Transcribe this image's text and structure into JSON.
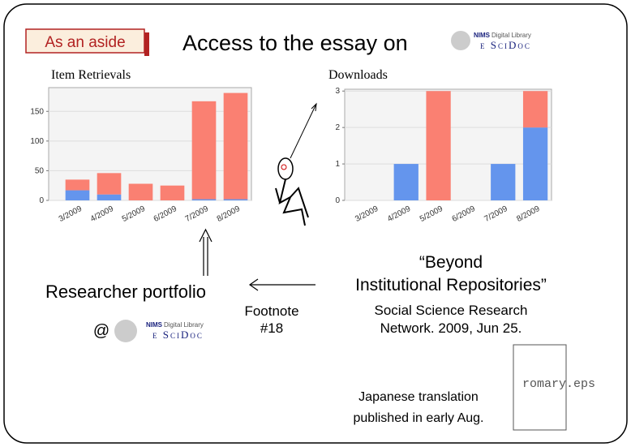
{
  "slide": {
    "aside": "As an aside",
    "title": "Access to the essay on",
    "logo": {
      "org": "NIMS",
      "name": "Digital Library",
      "brand": "e SciDoc"
    },
    "quote": [
      "“Beyond",
      "Institutional Repositories”"
    ],
    "citation": [
      "Social Science Research",
      "Network. 2009, Jun 25."
    ],
    "portfolio": "Researcher portfolio",
    "at": "@",
    "footnote": [
      "Footnote",
      "#18"
    ],
    "translation": [
      "Japanese translation",
      "published in early Aug."
    ],
    "image_file": "romary.eps"
  },
  "chart_data": [
    {
      "type": "bar",
      "stacked": true,
      "title": "Item Retrievals",
      "categories": [
        "3/2009",
        "4/2009",
        "5/2009",
        "6/2009",
        "7/2009",
        "8/2009"
      ],
      "series": [
        {
          "color": "#6495ed",
          "values": [
            17,
            10,
            0,
            0,
            2,
            2
          ]
        },
        {
          "color": "#fa8072",
          "values": [
            18,
            36,
            28,
            25,
            165,
            179
          ]
        }
      ],
      "ylim": [
        0,
        190
      ],
      "yticks": [
        0,
        50,
        100,
        150
      ],
      "grid": true
    },
    {
      "type": "bar",
      "stacked": true,
      "title": "Downloads",
      "categories": [
        "3/2009",
        "4/2009",
        "5/2009",
        "6/2009",
        "7/2009",
        "8/2009"
      ],
      "series": [
        {
          "color": "#6495ed",
          "values": [
            0,
            1,
            0,
            0,
            1,
            2
          ]
        },
        {
          "color": "#fa8072",
          "values": [
            0,
            0,
            3,
            0,
            0,
            1
          ]
        }
      ],
      "ylim": [
        0,
        3.05
      ],
      "yticks": [
        0,
        1,
        2,
        3
      ],
      "grid": true
    }
  ]
}
